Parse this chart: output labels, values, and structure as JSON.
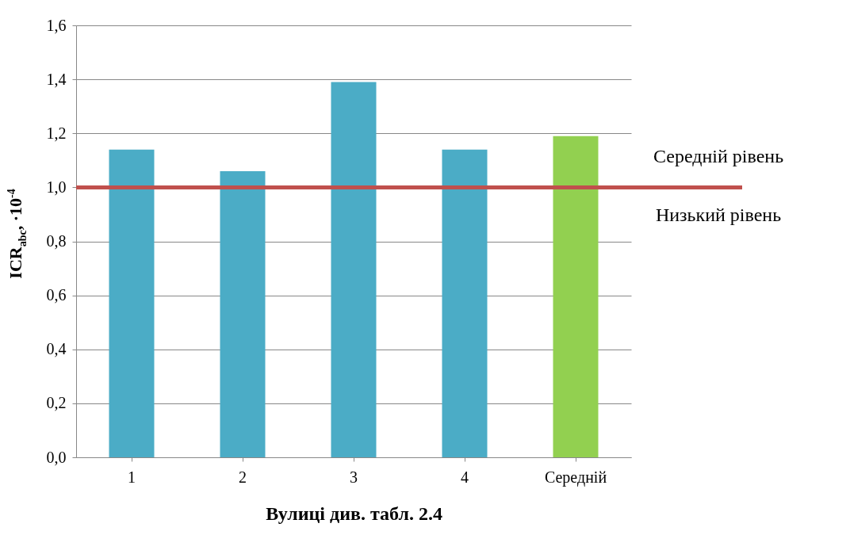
{
  "chart_data": {
    "type": "bar",
    "xlabel": "Вулиці див. табл. 2.4",
    "ylabel": "ICR$_{abc}$, ·10$^{-4}$",
    "categories": [
      "1",
      "2",
      "3",
      "4",
      "Середній"
    ],
    "values": [
      1.14,
      1.06,
      1.39,
      1.14,
      1.19
    ],
    "colors": [
      "#4bacc6",
      "#4bacc6",
      "#4bacc6",
      "#4bacc6",
      "#92d050"
    ],
    "ylim": [
      0,
      1.6
    ],
    "yticks": [
      {
        "value": 0,
        "label": "0,0"
      },
      {
        "value": 0.2,
        "label": "0,2"
      },
      {
        "value": 0.4,
        "label": "0,4"
      },
      {
        "value": 0.6,
        "label": "0,6"
      },
      {
        "value": 0.8,
        "label": "0,8"
      },
      {
        "value": 1,
        "label": "1,0"
      },
      {
        "value": 1.2,
        "label": "1,2"
      },
      {
        "value": 1.4,
        "label": "1,4"
      },
      {
        "value": 1.6,
        "label": "1,6"
      }
    ],
    "grid": "y",
    "ref_lines": [
      {
        "axis": "y",
        "value": 1,
        "color": "#c0504d"
      }
    ],
    "annotations": [
      "Середній рівень",
      "Низький рівень"
    ]
  }
}
